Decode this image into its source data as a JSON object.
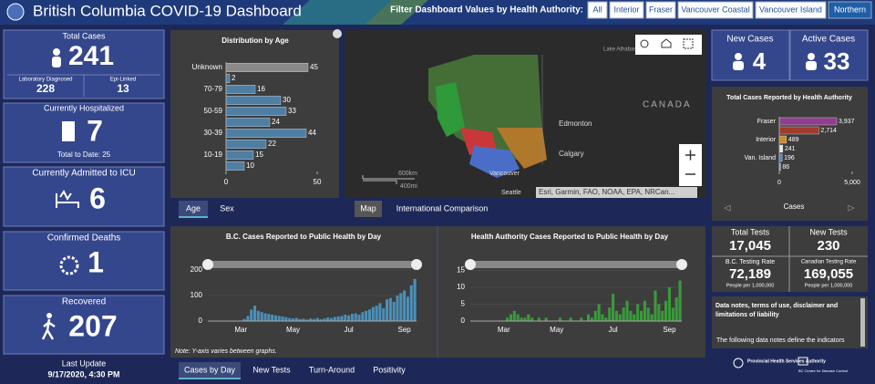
{
  "header": {
    "title": "British Columbia COVID-19 Dashboard",
    "filter_label": "Filter Dashboard Values by Health Authority:",
    "filters": [
      "All",
      "Interior",
      "Fraser",
      "Vancouver Coastal",
      "Vancouver Island",
      "Northern"
    ],
    "selected_filter": 5
  },
  "stats": {
    "total_cases": {
      "label": "Total Cases",
      "value": "241",
      "lab": {
        "label": "Laboratory Diagnosed",
        "value": "228"
      },
      "epi": {
        "label": "Epi-Linked",
        "value": "13"
      }
    },
    "hospitalized": {
      "label": "Currently Hospitalized",
      "value": "7",
      "note": "Total to Date: 25"
    },
    "icu": {
      "label": "Currently Admitted to ICU",
      "value": "6"
    },
    "deaths": {
      "label": "Confirmed Deaths",
      "value": "1"
    },
    "recovered": {
      "label": "Recovered",
      "value": "207"
    },
    "last_update": {
      "label": "Last Update",
      "value": "9/17/2020, 4:30 PM"
    },
    "new_cases": {
      "label": "New Cases",
      "value": "4"
    },
    "active_cases": {
      "label": "Active Cases",
      "value": "33"
    },
    "total_tests": {
      "label": "Total Tests",
      "value": "17,045"
    },
    "new_tests": {
      "label": "New Tests",
      "value": "230"
    },
    "bc_rate": {
      "label": "B.C. Testing Rate",
      "value": "72,189",
      "unit": "People per 1,000,000"
    },
    "canada_rate": {
      "label": "Canadian Testing Rate",
      "value": "169,055",
      "unit": "People per 1,000,000"
    }
  },
  "tabs": {
    "age": [
      "Age",
      "Sex"
    ],
    "map": [
      "Map",
      "International Comparison"
    ],
    "daily": [
      "Cases by Day",
      "New Tests",
      "Turn-Around",
      "Positivity"
    ]
  },
  "map": {
    "labels": [
      "Lake Athabasca",
      "CANADA",
      "Edmonton",
      "Calgary",
      "Vancouver",
      "Seattle"
    ],
    "scale": [
      "600km",
      "400mi"
    ],
    "attribution": "Esri, Garmin, FAO, NOAA, EPA, NRCan..."
  },
  "notes": {
    "heading": "Data notes, terms of use, disclaimer and limitations of liability",
    "text": "The following data notes define the indicators"
  },
  "logos": [
    "Provincial Health Services Authority",
    "BC Centre for Disease Control"
  ],
  "chart_data": [
    {
      "type": "hbar",
      "title": "Distribution by Age",
      "categories": [
        "Unknown",
        null,
        "70-79",
        null,
        "50-59",
        null,
        "30-39",
        null,
        "10-19",
        null
      ],
      "values": [
        45,
        2,
        16,
        30,
        33,
        24,
        44,
        22,
        15,
        10
      ],
      "colors": [
        "#8a8a8a",
        "#4f7ea3",
        "#4f7ea3",
        "#4f7ea3",
        "#4f7ea3",
        "#4f7ea3",
        "#4f7ea3",
        "#4f7ea3",
        "#4f7ea3",
        "#4f7ea3"
      ],
      "xlim": [
        0,
        50
      ],
      "xticks": [
        0,
        50
      ]
    },
    {
      "type": "hbar",
      "title": "Total Cases Reported by Health Authority",
      "categories": [
        "Fraser",
        null,
        "Interior",
        null,
        "Van. Island",
        null
      ],
      "values": [
        3937,
        2714,
        489,
        241,
        196,
        86
      ],
      "value_labels": [
        "3,937",
        "2,714",
        "489",
        "241",
        "196",
        "86"
      ],
      "colors": [
        "#8e3f8c",
        "#a33a2c",
        "#d08a2a",
        "#e8e8e8",
        "#4f86d6",
        "#8fb8e8"
      ],
      "xlim": [
        0,
        5000
      ],
      "xticks": [
        0,
        {
          "value": 5000,
          "label": "5,000"
        }
      ],
      "xlabel": "Cases"
    },
    {
      "type": "bar",
      "title": "B.C. Cases Reported to Public Health by Day",
      "color": "#4a90b8",
      "categories": [
        null,
        null,
        null,
        null,
        null,
        null,
        null,
        null,
        null,
        "Mar",
        null,
        null,
        null,
        null,
        null,
        null,
        null,
        null,
        null,
        null,
        null,
        null,
        null,
        null,
        "May",
        null,
        null,
        null,
        null,
        null,
        null,
        null,
        null,
        null,
        null,
        null,
        null,
        null,
        null,
        null,
        "Jul",
        null,
        null,
        null,
        null,
        null,
        null,
        null,
        null,
        null,
        null,
        null,
        null,
        null,
        null,
        null,
        "Sep",
        null,
        null,
        null
      ],
      "values": [
        0,
        0,
        1,
        0,
        0,
        1,
        0,
        0,
        1,
        2,
        8,
        20,
        45,
        60,
        40,
        35,
        30,
        28,
        25,
        22,
        20,
        18,
        15,
        12,
        10,
        12,
        8,
        9,
        6,
        10,
        8,
        12,
        7,
        10,
        14,
        12,
        16,
        18,
        20,
        25,
        22,
        28,
        30,
        25,
        35,
        40,
        45,
        55,
        60,
        70,
        50,
        85,
        90,
        75,
        100,
        110,
        120,
        95,
        140,
        165
      ],
      "ylim": [
        0,
        200
      ],
      "yticks": [
        0,
        100,
        200
      ],
      "note": "Note: Y-axis varies between graphs."
    },
    {
      "type": "bar",
      "title": "Health Authority Cases Reported to Public Health by Day",
      "color": "#3a9a3a",
      "categories": [
        null,
        null,
        null,
        null,
        null,
        null,
        null,
        null,
        null,
        "Mar",
        null,
        null,
        null,
        null,
        null,
        null,
        null,
        null,
        null,
        null,
        null,
        null,
        null,
        null,
        "May",
        null,
        null,
        null,
        null,
        null,
        null,
        null,
        null,
        null,
        null,
        null,
        null,
        null,
        null,
        null,
        "Jul",
        null,
        null,
        null,
        null,
        null,
        null,
        null,
        null,
        null,
        null,
        null,
        null,
        null,
        null,
        null,
        "Sep",
        null,
        null,
        null
      ],
      "values": [
        0,
        0,
        0,
        0,
        0,
        0,
        0,
        0,
        0,
        0,
        1,
        2,
        3,
        2,
        1,
        1,
        2,
        1,
        0,
        1,
        0,
        1,
        0,
        0,
        0,
        1,
        0,
        0,
        1,
        0,
        0,
        1,
        0,
        2,
        1,
        3,
        5,
        2,
        1,
        4,
        8,
        3,
        2,
        4,
        6,
        3,
        2,
        5,
        3,
        6,
        4,
        2,
        9,
        5,
        3,
        6,
        10,
        4,
        7,
        12
      ],
      "ylim": [
        0,
        17
      ],
      "yticks": [
        0,
        5,
        10,
        15
      ]
    }
  ]
}
